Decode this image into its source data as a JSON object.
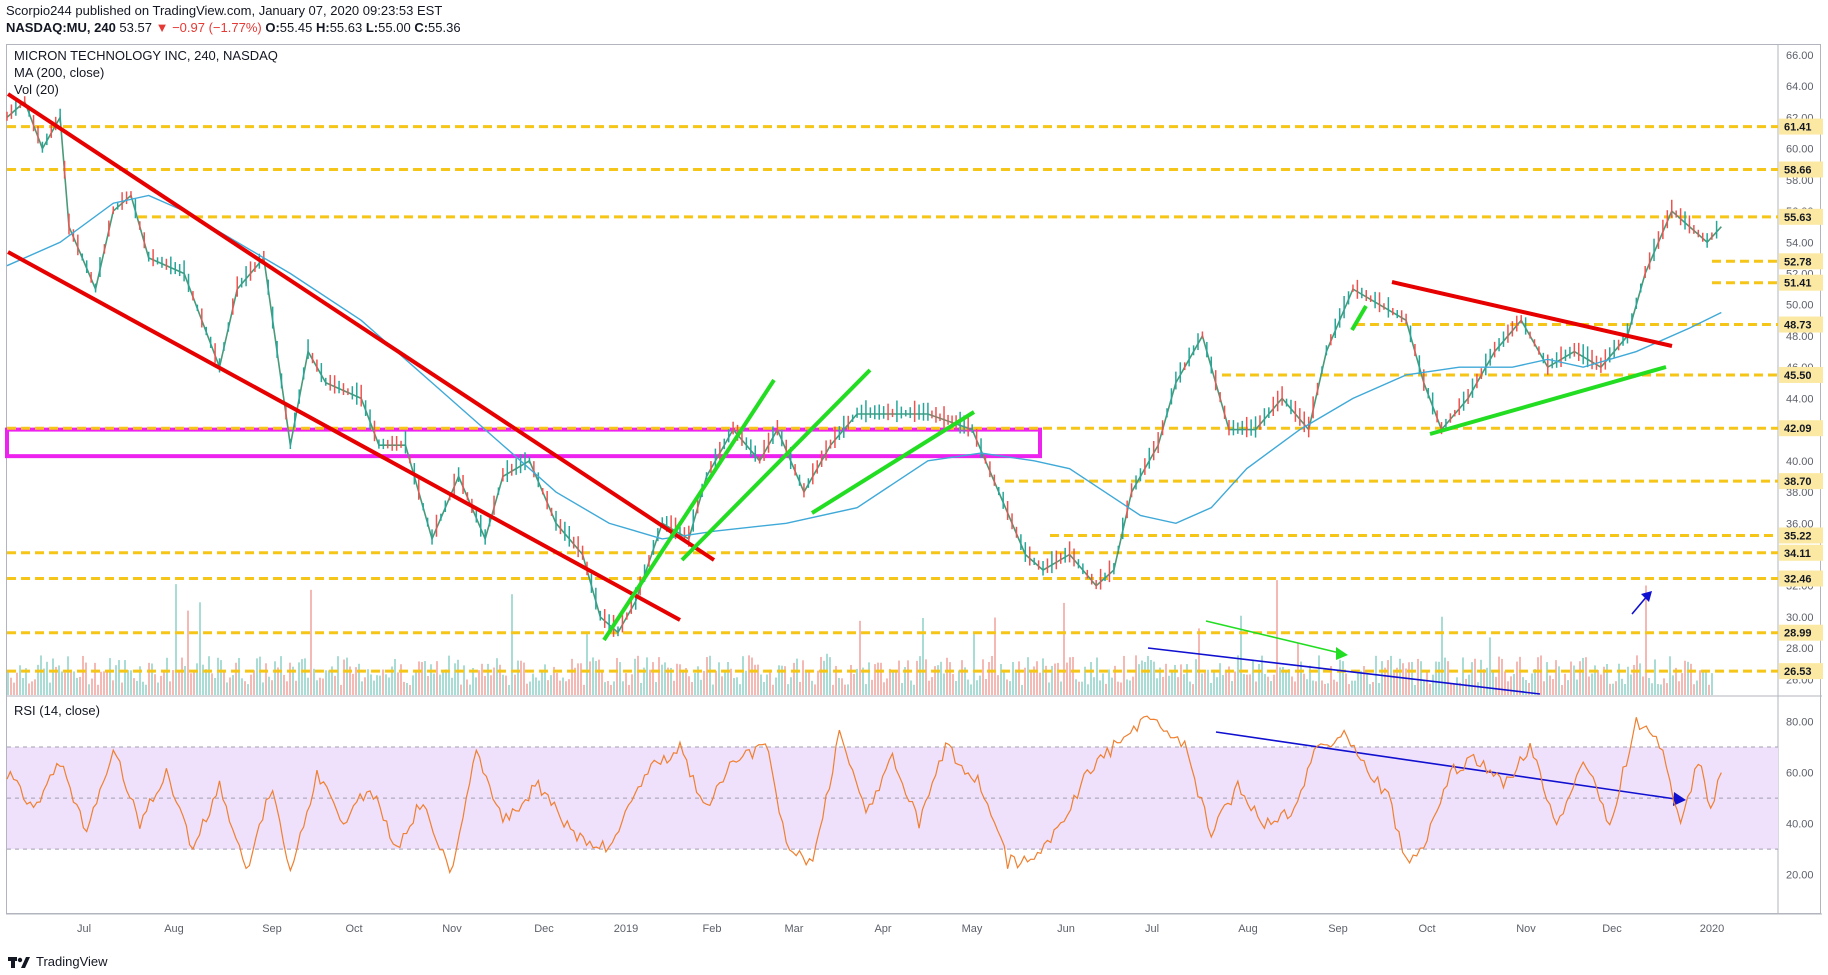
{
  "header": {
    "publisher_line": "Scorpio244 published on TradingView.com, January 07, 2020 09:23:53 EST",
    "symbol": "NASDAQ:MU, 240",
    "last": "53.57",
    "change": "−0.97 (−1.77%)",
    "o_label": "O:",
    "o_value": "55.45",
    "h_label": "H:",
    "h_value": "55.63",
    "l_label": "L:",
    "l_value": "55.00",
    "c_label": "C:",
    "c_value": "55.36"
  },
  "legend": {
    "title": "MICRON TECHNOLOGY INC, 240, NASDAQ",
    "ma": "MA (200, close)",
    "vol": "Vol (20)",
    "rsi": "RSI (14, close)"
  },
  "footer": {
    "brand": "TradingView"
  },
  "colors": {
    "support_lines": "#f5c518",
    "channel": "#e60000",
    "up_channel": "#22dd22",
    "zone": "#ee22ee",
    "ma": "#3fa9d8",
    "rsi_line": "#f08030",
    "rsi_band": "#efe0fb",
    "trend_blue": "#1010d0"
  },
  "chart_data": [
    {
      "type": "line",
      "title": "MICRON TECHNOLOGY INC, 240, NASDAQ",
      "x_tick_labels": [
        "Jul",
        "Aug",
        "Sep",
        "Oct",
        "Nov",
        "Dec",
        "2019",
        "Feb",
        "Mar",
        "Apr",
        "May",
        "Jun",
        "Jul",
        "Aug",
        "Sep",
        "Oct",
        "Nov",
        "Dec",
        "2020"
      ],
      "y_tick_labels": [
        "66.00",
        "64.00",
        "62.00",
        "60.00",
        "58.00",
        "56.00",
        "54.00",
        "52.00",
        "50.00",
        "48.00",
        "46.00",
        "44.00",
        "42.00",
        "40.00",
        "38.00",
        "36.00",
        "34.00",
        "32.00",
        "30.00",
        "28.00",
        "26.00"
      ],
      "ylim": [
        25,
        66.7
      ],
      "horizontal_levels": [
        61.41,
        58.66,
        55.63,
        52.78,
        51.41,
        48.73,
        45.5,
        42.09,
        38.7,
        35.22,
        34.11,
        32.46,
        28.99,
        26.53
      ],
      "price_label_texts": [
        "61.41",
        "58.66",
        "55.63",
        "52.78",
        "51.41",
        "48.73",
        "45.50",
        "42.09",
        "38.70",
        "35.22",
        "34.11",
        "32.46",
        "28.99",
        "26.53"
      ],
      "zone": [
        40.3,
        42.0
      ],
      "price_path": [
        [
          0,
          62
        ],
        [
          0.01,
          63
        ],
        [
          0.02,
          60
        ],
        [
          0.03,
          62
        ],
        [
          0.035,
          55
        ],
        [
          0.05,
          51
        ],
        [
          0.06,
          56
        ],
        [
          0.07,
          57
        ],
        [
          0.08,
          53
        ],
        [
          0.1,
          52
        ],
        [
          0.12,
          46
        ],
        [
          0.13,
          51
        ],
        [
          0.145,
          53
        ],
        [
          0.16,
          41
        ],
        [
          0.17,
          47
        ],
        [
          0.18,
          45
        ],
        [
          0.2,
          44
        ],
        [
          0.21,
          41
        ],
        [
          0.225,
          41
        ],
        [
          0.24,
          35
        ],
        [
          0.255,
          39
        ],
        [
          0.27,
          35
        ],
        [
          0.28,
          39
        ],
        [
          0.295,
          40
        ],
        [
          0.31,
          36
        ],
        [
          0.325,
          34
        ],
        [
          0.335,
          30
        ],
        [
          0.345,
          29
        ],
        [
          0.355,
          31
        ],
        [
          0.37,
          36
        ],
        [
          0.385,
          35
        ],
        [
          0.395,
          39
        ],
        [
          0.41,
          42
        ],
        [
          0.425,
          40
        ],
        [
          0.435,
          42
        ],
        [
          0.45,
          38
        ],
        [
          0.465,
          41
        ],
        [
          0.48,
          43
        ],
        [
          0.5,
          43
        ],
        [
          0.52,
          43
        ],
        [
          0.545,
          42
        ],
        [
          0.56,
          38
        ],
        [
          0.575,
          34
        ],
        [
          0.585,
          33
        ],
        [
          0.6,
          34
        ],
        [
          0.615,
          32
        ],
        [
          0.625,
          33
        ],
        [
          0.635,
          38
        ],
        [
          0.65,
          41
        ],
        [
          0.66,
          45
        ],
        [
          0.675,
          48
        ],
        [
          0.69,
          42
        ],
        [
          0.705,
          42
        ],
        [
          0.72,
          44
        ],
        [
          0.735,
          42
        ],
        [
          0.745,
          47
        ],
        [
          0.76,
          51
        ],
        [
          0.775,
          50
        ],
        [
          0.79,
          49
        ],
        [
          0.8,
          45
        ],
        [
          0.81,
          42
        ],
        [
          0.825,
          44
        ],
        [
          0.84,
          47
        ],
        [
          0.855,
          49
        ],
        [
          0.87,
          46
        ],
        [
          0.885,
          47
        ],
        [
          0.9,
          46
        ],
        [
          0.915,
          48
        ],
        [
          0.925,
          52
        ],
        [
          0.94,
          56
        ],
        [
          0.95,
          55
        ],
        [
          0.96,
          54
        ],
        [
          0.968,
          55
        ]
      ],
      "ma_path": [
        [
          0,
          52.5
        ],
        [
          0.03,
          54
        ],
        [
          0.06,
          56.5
        ],
        [
          0.08,
          57
        ],
        [
          0.1,
          56
        ],
        [
          0.13,
          54
        ],
        [
          0.16,
          52
        ],
        [
          0.2,
          49
        ],
        [
          0.24,
          45
        ],
        [
          0.28,
          41
        ],
        [
          0.31,
          38
        ],
        [
          0.34,
          36
        ],
        [
          0.37,
          35
        ],
        [
          0.4,
          35.5
        ],
        [
          0.44,
          36
        ],
        [
          0.48,
          37
        ],
        [
          0.52,
          40
        ],
        [
          0.55,
          40.5
        ],
        [
          0.58,
          40
        ],
        [
          0.6,
          39.5
        ],
        [
          0.62,
          38
        ],
        [
          0.64,
          36.5
        ],
        [
          0.66,
          36
        ],
        [
          0.68,
          37
        ],
        [
          0.7,
          39.5
        ],
        [
          0.73,
          42
        ],
        [
          0.76,
          44
        ],
        [
          0.79,
          45.5
        ],
        [
          0.82,
          46
        ],
        [
          0.85,
          46
        ],
        [
          0.87,
          46.5
        ],
        [
          0.89,
          46
        ],
        [
          0.92,
          47
        ],
        [
          0.95,
          48.5
        ],
        [
          0.968,
          49.5
        ]
      ]
    },
    {
      "type": "line",
      "title": "RSI (14, close)",
      "y_tick_labels": [
        "80.00",
        "60.00",
        "40.00",
        "20.00"
      ],
      "ylim": [
        5,
        90
      ],
      "band": [
        30,
        70
      ],
      "rsi_path": [
        [
          0,
          60
        ],
        [
          0.015,
          45
        ],
        [
          0.03,
          65
        ],
        [
          0.045,
          35
        ],
        [
          0.06,
          70
        ],
        [
          0.075,
          40
        ],
        [
          0.09,
          60
        ],
        [
          0.105,
          30
        ],
        [
          0.12,
          55
        ],
        [
          0.135,
          22
        ],
        [
          0.15,
          55
        ],
        [
          0.16,
          20
        ],
        [
          0.175,
          60
        ],
        [
          0.19,
          40
        ],
        [
          0.205,
          55
        ],
        [
          0.22,
          30
        ],
        [
          0.235,
          50
        ],
        [
          0.25,
          20
        ],
        [
          0.265,
          70
        ],
        [
          0.28,
          40
        ],
        [
          0.3,
          55
        ],
        [
          0.32,
          35
        ],
        [
          0.34,
          30
        ],
        [
          0.36,
          60
        ],
        [
          0.38,
          70
        ],
        [
          0.395,
          45
        ],
        [
          0.41,
          65
        ],
        [
          0.43,
          70
        ],
        [
          0.44,
          30
        ],
        [
          0.455,
          25
        ],
        [
          0.47,
          75
        ],
        [
          0.485,
          45
        ],
        [
          0.5,
          65
        ],
        [
          0.515,
          40
        ],
        [
          0.53,
          70
        ],
        [
          0.55,
          55
        ],
        [
          0.565,
          25
        ],
        [
          0.58,
          25
        ],
        [
          0.595,
          40
        ],
        [
          0.61,
          60
        ],
        [
          0.625,
          70
        ],
        [
          0.64,
          80
        ],
        [
          0.655,
          78
        ],
        [
          0.665,
          70
        ],
        [
          0.68,
          35
        ],
        [
          0.695,
          55
        ],
        [
          0.71,
          40
        ],
        [
          0.725,
          45
        ],
        [
          0.74,
          70
        ],
        [
          0.755,
          75
        ],
        [
          0.77,
          60
        ],
        [
          0.78,
          50
        ],
        [
          0.79,
          25
        ],
        [
          0.8,
          30
        ],
        [
          0.815,
          60
        ],
        [
          0.83,
          65
        ],
        [
          0.845,
          55
        ],
        [
          0.86,
          70
        ],
        [
          0.875,
          40
        ],
        [
          0.89,
          65
        ],
        [
          0.905,
          40
        ],
        [
          0.92,
          80
        ],
        [
          0.935,
          70
        ],
        [
          0.945,
          38
        ],
        [
          0.955,
          65
        ],
        [
          0.962,
          45
        ],
        [
          0.968,
          60
        ]
      ]
    }
  ]
}
